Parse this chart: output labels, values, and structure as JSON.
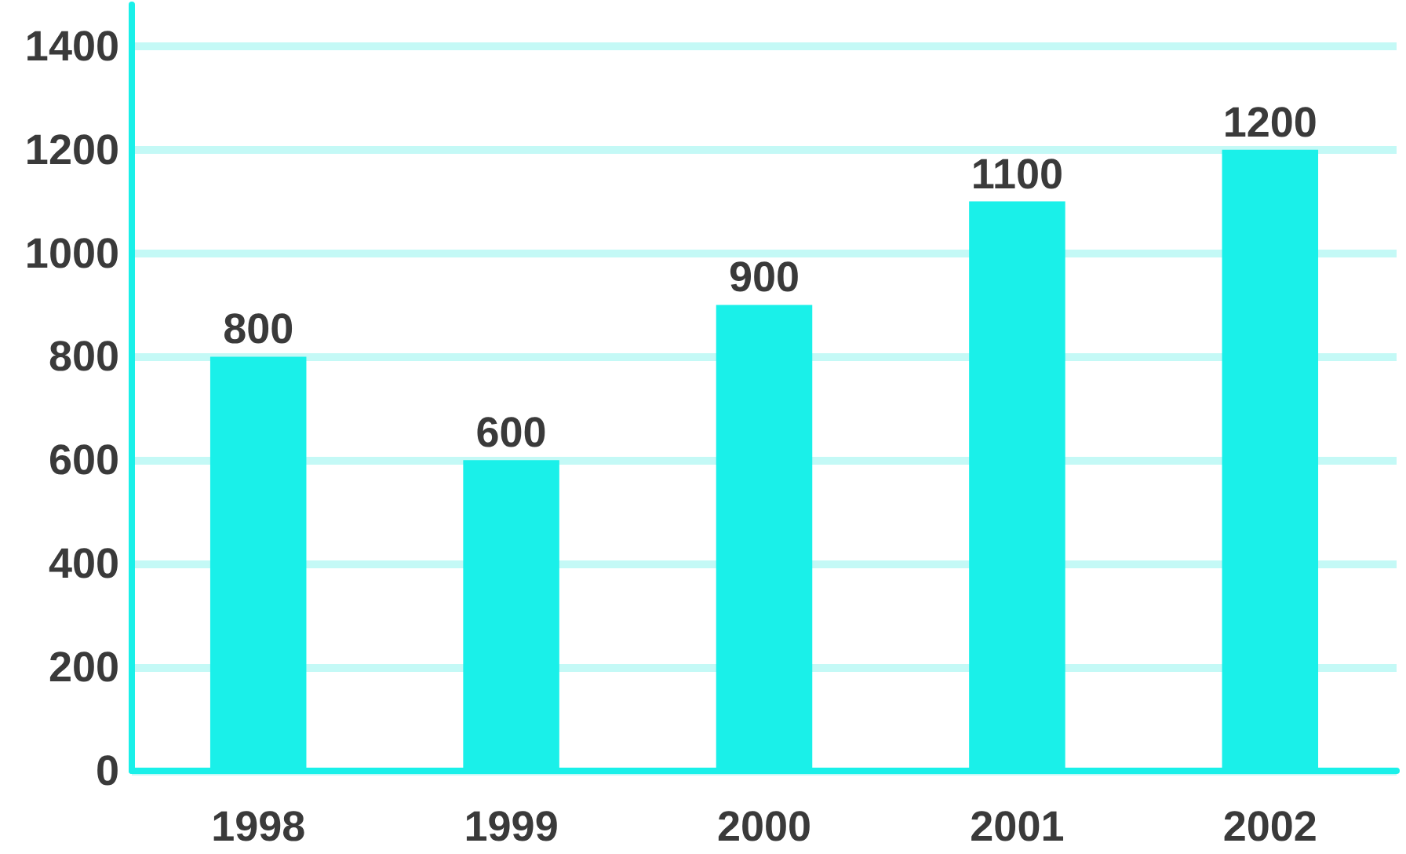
{
  "chart_data": {
    "type": "bar",
    "categories": [
      "1998",
      "1999",
      "2000",
      "2001",
      "2002"
    ],
    "values": [
      800,
      600,
      900,
      1100,
      1200
    ],
    "color": "#1af0e9",
    "ylim": [
      0,
      1480
    ],
    "yticks": [
      0,
      200,
      400,
      600,
      800,
      1000,
      1200,
      1400
    ],
    "grid": "y",
    "data_labels": true
  }
}
